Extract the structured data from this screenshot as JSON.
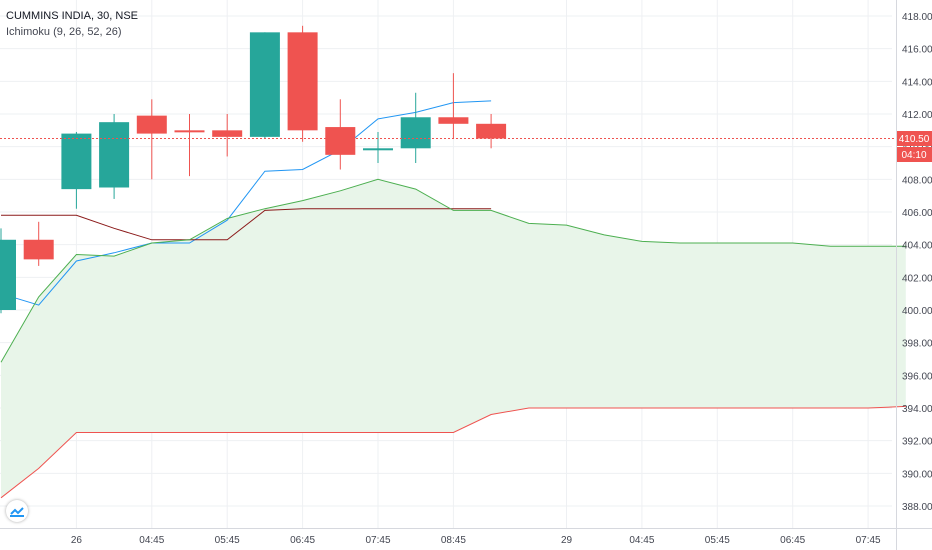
{
  "legend": {
    "symbol": "CUMMINS INDIA, 30, NSE",
    "indicator": "Ichimoku (9, 26, 52, 26)"
  },
  "price_axis": {
    "last_price_label": "410.50",
    "countdown_label": "04:10"
  },
  "colors": {
    "up": "#26a69a",
    "down": "#ef5350",
    "conversion": "#2196f3",
    "base": "#8b1a1a",
    "lead1": "#4caf50",
    "lead2": "#ef5350",
    "cloud": "#e8f5e9",
    "grid": "#eef0f3",
    "axis_text": "#434651",
    "price_line": "#ef5350"
  },
  "chart_data": {
    "type": "candlestick",
    "title": "CUMMINS INDIA, 30, NSE",
    "ylim": [
      387,
      419
    ],
    "y_ticks": [
      388,
      390,
      392,
      394,
      396,
      398,
      400,
      402,
      404,
      406,
      408,
      410,
      412,
      414,
      416,
      418
    ],
    "y_tick_labels": [
      "388.00",
      "390.00",
      "392.00",
      "394.00",
      "396.00",
      "398.00",
      "400.00",
      "402.00",
      "404.00",
      "406.00",
      "408.00",
      "410.00",
      "412.00",
      "414.00",
      "416.00",
      "418.00"
    ],
    "x_ticks": [
      {
        "i": 2,
        "label": "26"
      },
      {
        "i": 4,
        "label": "04:45"
      },
      {
        "i": 6,
        "label": "05:45"
      },
      {
        "i": 8,
        "label": "06:45"
      },
      {
        "i": 10,
        "label": "07:45"
      },
      {
        "i": 12,
        "label": "08:45"
      },
      {
        "i": 15,
        "label": "29"
      },
      {
        "i": 17,
        "label": "04:45"
      },
      {
        "i": 19,
        "label": "05:45"
      },
      {
        "i": 21,
        "label": "06:45"
      },
      {
        "i": 23,
        "label": "07:45"
      }
    ],
    "last_price": 410.5,
    "candles": [
      {
        "i": 0,
        "o": 400.0,
        "h": 405.0,
        "l": 399.8,
        "c": 404.3
      },
      {
        "i": 1,
        "o": 404.3,
        "h": 405.4,
        "l": 402.7,
        "c": 403.1
      },
      {
        "i": 2,
        "o": 407.4,
        "h": 410.9,
        "l": 406.2,
        "c": 410.8
      },
      {
        "i": 3,
        "o": 407.5,
        "h": 412.0,
        "l": 406.8,
        "c": 411.5
      },
      {
        "i": 4,
        "o": 411.9,
        "h": 412.9,
        "l": 408.0,
        "c": 410.8
      },
      {
        "i": 5,
        "o": 411.0,
        "h": 412.0,
        "l": 408.2,
        "c": 410.9
      },
      {
        "i": 6,
        "o": 411.0,
        "h": 412.0,
        "l": 409.4,
        "c": 410.6
      },
      {
        "i": 7,
        "o": 410.6,
        "h": 417.0,
        "l": 410.5,
        "c": 417.0
      },
      {
        "i": 8,
        "o": 417.0,
        "h": 417.4,
        "l": 410.3,
        "c": 411.0
      },
      {
        "i": 9,
        "o": 411.2,
        "h": 412.9,
        "l": 408.6,
        "c": 409.5
      },
      {
        "i": 10,
        "o": 409.8,
        "h": 410.9,
        "l": 409.0,
        "c": 409.9
      },
      {
        "i": 11,
        "o": 409.9,
        "h": 413.3,
        "l": 409.0,
        "c": 411.8
      },
      {
        "i": 12,
        "o": 411.8,
        "h": 414.5,
        "l": 410.5,
        "c": 411.4
      },
      {
        "i": 13,
        "o": 411.4,
        "h": 412.0,
        "l": 409.9,
        "c": 410.5
      }
    ],
    "series": [
      {
        "key": "conversion",
        "points": [
          [
            0,
            401.0
          ],
          [
            1,
            400.3
          ],
          [
            2,
            403.0
          ],
          [
            3,
            403.5
          ],
          [
            4,
            404.1
          ],
          [
            5,
            404.1
          ],
          [
            6,
            405.5
          ],
          [
            7,
            408.5
          ],
          [
            8,
            408.6
          ],
          [
            9,
            409.8
          ],
          [
            10,
            411.7
          ],
          [
            11,
            412.1
          ],
          [
            12,
            412.7
          ],
          [
            13,
            412.8
          ]
        ]
      },
      {
        "key": "base",
        "points": [
          [
            0,
            405.8
          ],
          [
            1,
            405.8
          ],
          [
            2,
            405.8
          ],
          [
            3,
            405.0
          ],
          [
            4,
            404.3
          ],
          [
            5,
            404.3
          ],
          [
            6,
            404.3
          ],
          [
            7,
            406.1
          ],
          [
            8,
            406.2
          ],
          [
            9,
            406.2
          ],
          [
            10,
            406.2
          ],
          [
            11,
            406.2
          ],
          [
            12,
            406.2
          ],
          [
            13,
            406.2
          ]
        ]
      },
      {
        "key": "lead1",
        "points": [
          [
            0,
            396.8
          ],
          [
            1,
            400.8
          ],
          [
            2,
            403.4
          ],
          [
            3,
            403.3
          ],
          [
            4,
            404.1
          ],
          [
            5,
            404.3
          ],
          [
            6,
            405.6
          ],
          [
            7,
            406.2
          ],
          [
            8,
            406.7
          ],
          [
            9,
            407.3
          ],
          [
            10,
            408.0
          ],
          [
            11,
            407.4
          ],
          [
            12,
            406.1
          ],
          [
            13,
            406.1
          ],
          [
            14,
            405.3
          ],
          [
            15,
            405.2
          ],
          [
            16,
            404.6
          ],
          [
            17,
            404.2
          ],
          [
            18,
            404.1
          ],
          [
            19,
            404.1
          ],
          [
            20,
            404.1
          ],
          [
            21,
            404.1
          ],
          [
            22,
            403.9
          ],
          [
            23,
            403.9
          ],
          [
            24,
            403.9
          ]
        ]
      },
      {
        "key": "lead2",
        "points": [
          [
            0,
            388.5
          ],
          [
            1,
            390.3
          ],
          [
            2,
            392.5
          ],
          [
            3,
            392.5
          ],
          [
            4,
            392.5
          ],
          [
            5,
            392.5
          ],
          [
            6,
            392.5
          ],
          [
            7,
            392.5
          ],
          [
            8,
            392.5
          ],
          [
            9,
            392.5
          ],
          [
            10,
            392.5
          ],
          [
            11,
            392.5
          ],
          [
            12,
            392.5
          ],
          [
            13,
            393.6
          ],
          [
            14,
            394.0
          ],
          [
            15,
            394.0
          ],
          [
            16,
            394.0
          ],
          [
            17,
            394.0
          ],
          [
            18,
            394.0
          ],
          [
            19,
            394.0
          ],
          [
            20,
            394.0
          ],
          [
            21,
            394.0
          ],
          [
            22,
            394.0
          ],
          [
            23,
            394.0
          ],
          [
            24,
            394.1
          ]
        ]
      }
    ]
  }
}
